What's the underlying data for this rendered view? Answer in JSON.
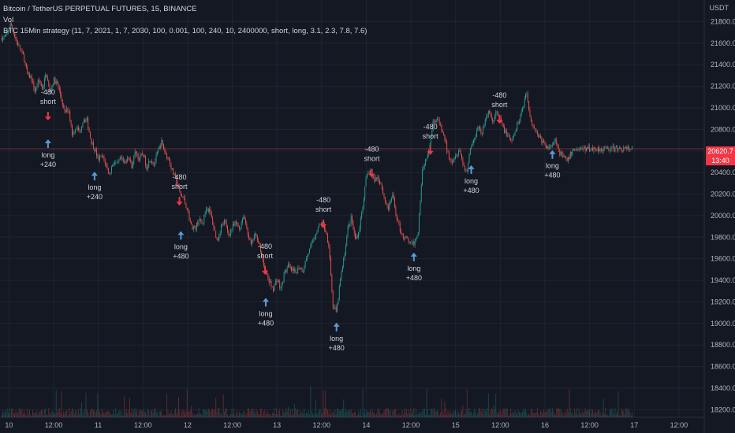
{
  "legend": {
    "symbol": "Bitcoin / TetherUS PERPETUAL FUTURES, 15, BINANCE",
    "volume": "Vol",
    "strategy": "BTC 15Min strategy (11, 7, 2021, 1, 7, 2030, 100, 0.001, 100, 240, 10, 2400000, short, long, 3.1, 2.3, 7.8, 7.6)"
  },
  "axis": {
    "currency": "USDT"
  },
  "last_price": {
    "value": "20620.7",
    "countdown": "13:40"
  },
  "colors": {
    "up": "#26a69a",
    "down": "#ef5350",
    "long_arrow": "#5b9bd5",
    "short_arrow": "#f23645",
    "background": "#141823",
    "price_tag": "#f23645"
  },
  "chart_data": {
    "type": "candlestick",
    "y_ticks": [
      18200,
      18400,
      18600,
      18800,
      19000,
      19200,
      19400,
      19600,
      19800,
      20000,
      20200,
      20400,
      20600,
      20800,
      21000,
      21200,
      21400,
      21600,
      21800
    ],
    "ylim": [
      18130,
      22000
    ],
    "x_ticks": [
      "10",
      "12:00",
      "11",
      "12:00",
      "12",
      "12:00",
      "13",
      "12:00",
      "14",
      "12:00",
      "15",
      "12:00",
      "16",
      "12:00",
      "17",
      "12:00"
    ],
    "x_tick_hours": [
      0,
      12,
      24,
      36,
      48,
      60,
      72,
      84,
      96,
      108,
      120,
      132,
      144,
      156,
      168,
      180
    ],
    "xlim_hours": [
      -2.4,
      186.8
    ],
    "last_hour": 167.6,
    "price_path": [
      [
        -1,
        21650
      ],
      [
        0.5,
        21780
      ],
      [
        2,
        21620
      ],
      [
        3,
        21540
      ],
      [
        4,
        21470
      ],
      [
        5,
        21300
      ],
      [
        6,
        21280
      ],
      [
        7,
        21150
      ],
      [
        8,
        21260
      ],
      [
        9,
        21180
      ],
      [
        10,
        21320
      ],
      [
        11,
        21140
      ],
      [
        12,
        21260
      ],
      [
        13,
        21220
      ],
      [
        14,
        21100
      ],
      [
        15,
        20950
      ],
      [
        16,
        21000
      ],
      [
        17,
        20760
      ],
      [
        18,
        20820
      ],
      [
        19,
        20780
      ],
      [
        20,
        20900
      ],
      [
        21,
        20880
      ],
      [
        22,
        20700
      ],
      [
        23,
        20620
      ],
      [
        24,
        20520
      ],
      [
        25,
        20550
      ],
      [
        26,
        20480
      ],
      [
        27,
        20380
      ],
      [
        28,
        20500
      ],
      [
        29,
        20470
      ],
      [
        30,
        20530
      ],
      [
        31,
        20480
      ],
      [
        32,
        20560
      ],
      [
        33,
        20460
      ],
      [
        34,
        20600
      ],
      [
        35,
        20520
      ],
      [
        36,
        20580
      ],
      [
        37,
        20450
      ],
      [
        38,
        20530
      ],
      [
        39,
        20480
      ],
      [
        40,
        20590
      ],
      [
        41,
        20680
      ],
      [
        42,
        20580
      ],
      [
        43,
        20520
      ],
      [
        44,
        20400
      ],
      [
        45,
        20320
      ],
      [
        46,
        20200
      ],
      [
        47,
        20150
      ],
      [
        48,
        20050
      ],
      [
        49,
        19900
      ],
      [
        50,
        19880
      ],
      [
        51,
        19960
      ],
      [
        52,
        19920
      ],
      [
        53,
        20080
      ],
      [
        54,
        20040
      ],
      [
        55,
        19890
      ],
      [
        56,
        19760
      ],
      [
        57,
        19900
      ],
      [
        58,
        19950
      ],
      [
        59,
        19820
      ],
      [
        60,
        19890
      ],
      [
        61,
        19930
      ],
      [
        62,
        19880
      ],
      [
        63,
        20010
      ],
      [
        64,
        19870
      ],
      [
        65,
        19720
      ],
      [
        66,
        19820
      ],
      [
        67,
        19780
      ],
      [
        68,
        19600
      ],
      [
        69,
        19470
      ],
      [
        70,
        19380
      ],
      [
        71,
        19320
      ],
      [
        72,
        19420
      ],
      [
        73,
        19310
      ],
      [
        74,
        19470
      ],
      [
        75,
        19530
      ],
      [
        76,
        19490
      ],
      [
        77,
        19470
      ],
      [
        78,
        19530
      ],
      [
        79,
        19490
      ],
      [
        80,
        19620
      ],
      [
        81,
        19700
      ],
      [
        82,
        19800
      ],
      [
        83,
        19890
      ],
      [
        84,
        19930
      ],
      [
        85,
        19870
      ],
      [
        86,
        19720
      ],
      [
        87,
        19170
      ],
      [
        88,
        19100
      ],
      [
        89,
        19400
      ],
      [
        90,
        19600
      ],
      [
        91,
        19880
      ],
      [
        92,
        19980
      ],
      [
        93,
        19780
      ],
      [
        94,
        19850
      ],
      [
        95,
        20080
      ],
      [
        96,
        20350
      ],
      [
        97,
        20420
      ],
      [
        98,
        20330
      ],
      [
        99,
        20360
      ],
      [
        100,
        20290
      ],
      [
        101,
        20140
      ],
      [
        102,
        20060
      ],
      [
        103,
        20200
      ],
      [
        104,
        20010
      ],
      [
        105,
        19880
      ],
      [
        106,
        19800
      ],
      [
        107,
        19780
      ],
      [
        108,
        19730
      ],
      [
        109,
        19750
      ],
      [
        110,
        19880
      ],
      [
        111,
        20420
      ],
      [
        112,
        20520
      ],
      [
        113,
        20660
      ],
      [
        114,
        20880
      ],
      [
        115,
        20900
      ],
      [
        116,
        20820
      ],
      [
        117,
        20720
      ],
      [
        118,
        20560
      ],
      [
        119,
        20510
      ],
      [
        120,
        20560
      ],
      [
        121,
        20620
      ],
      [
        122,
        20480
      ],
      [
        123,
        20400
      ],
      [
        124,
        20640
      ],
      [
        125,
        20700
      ],
      [
        126,
        20840
      ],
      [
        127,
        20760
      ],
      [
        128,
        20880
      ],
      [
        129,
        20980
      ],
      [
        130,
        20860
      ],
      [
        131,
        20960
      ],
      [
        132,
        20880
      ],
      [
        133,
        20800
      ],
      [
        134,
        20740
      ],
      [
        135,
        20680
      ],
      [
        136,
        20780
      ],
      [
        137,
        20880
      ],
      [
        138,
        21000
      ],
      [
        139,
        21150
      ],
      [
        140,
        20920
      ],
      [
        141,
        20820
      ],
      [
        142,
        20760
      ],
      [
        143,
        20700
      ],
      [
        144,
        20650
      ],
      [
        145,
        20620
      ],
      [
        146,
        20680
      ],
      [
        147,
        20700
      ],
      [
        148,
        20580
      ],
      [
        149,
        20540
      ],
      [
        150,
        20500
      ],
      [
        151,
        20580
      ],
      [
        152,
        20620
      ]
    ],
    "annotations": [
      {
        "hour": 10.5,
        "price": 20890,
        "direction": "down",
        "lines": [
          "-480",
          "short"
        ],
        "text_side": "above"
      },
      {
        "hour": 10.5,
        "price": 20700,
        "direction": "up",
        "lines": [
          "long",
          "+240"
        ],
        "text_side": "below"
      },
      {
        "hour": 23.0,
        "price": 20400,
        "direction": "up",
        "lines": [
          "long",
          "+240"
        ],
        "text_side": "below"
      },
      {
        "hour": 45.8,
        "price": 20100,
        "direction": "down",
        "lines": [
          "-480",
          "short"
        ],
        "text_side": "above"
      },
      {
        "hour": 46.2,
        "price": 19850,
        "direction": "up",
        "lines": [
          "long",
          "+480"
        ],
        "text_side": "below"
      },
      {
        "hour": 68.8,
        "price": 19460,
        "direction": "down",
        "lines": [
          "-480",
          "short"
        ],
        "text_side": "above"
      },
      {
        "hour": 69.0,
        "price": 19230,
        "direction": "up",
        "lines": [
          "long",
          "+480"
        ],
        "text_side": "below"
      },
      {
        "hour": 84.5,
        "price": 19890,
        "direction": "down",
        "lines": [
          "-480",
          "short"
        ],
        "text_side": "above"
      },
      {
        "hour": 88.0,
        "price": 19000,
        "direction": "up",
        "lines": [
          "long",
          "+480"
        ],
        "text_side": "below"
      },
      {
        "hour": 97.5,
        "price": 20360,
        "direction": "down",
        "lines": [
          "-480",
          "short"
        ],
        "text_side": "above"
      },
      {
        "hour": 108.8,
        "price": 19650,
        "direction": "up",
        "lines": [
          "long",
          "+480"
        ],
        "text_side": "below"
      },
      {
        "hour": 113.2,
        "price": 20570,
        "direction": "down",
        "lines": [
          "-480",
          "short"
        ],
        "text_side": "above"
      },
      {
        "hour": 124.2,
        "price": 20460,
        "direction": "up",
        "lines": [
          "long",
          "+480"
        ],
        "text_side": "below"
      },
      {
        "hour": 131.8,
        "price": 20860,
        "direction": "down",
        "lines": [
          "-480",
          "short"
        ],
        "text_side": "above"
      },
      {
        "hour": 146.0,
        "price": 20600,
        "direction": "up",
        "lines": [
          "long",
          "+480"
        ],
        "text_side": "below"
      }
    ]
  }
}
